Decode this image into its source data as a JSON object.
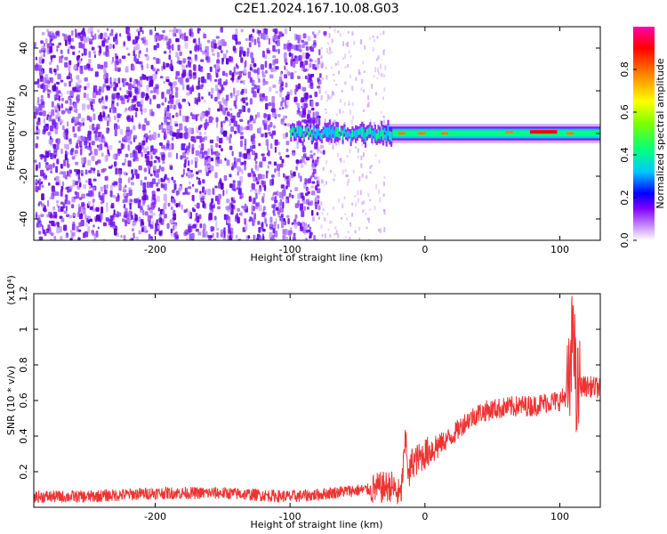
{
  "title": "C2E1.2024.167.10.08.G03",
  "chart_data": [
    {
      "type": "heatmap",
      "xlabel": "Height of straight line (km)",
      "ylabel": "Frequency (Hz)",
      "xlim": [
        -290,
        130
      ],
      "ylim": [
        -50,
        50
      ],
      "xticks": [
        -200,
        -100,
        0,
        100
      ],
      "yticks": [
        -40,
        -20,
        0,
        20,
        40
      ],
      "colorbar": {
        "label": "Normalized spectral amplitude",
        "range": [
          0.0,
          1.0
        ],
        "ticks": [
          0.0,
          0.2,
          0.4,
          0.6,
          0.8
        ],
        "colormap": [
          "#ffffff",
          "#cc99ff",
          "#8000ff",
          "#0000ff",
          "#00c8ff",
          "#00ff80",
          "#80ff00",
          "#ffff00",
          "#ff8000",
          "#ff0000",
          "#ff00aa"
        ]
      },
      "regions": [
        {
          "x_range": [
            -290,
            -80
          ],
          "description": "broadband noise",
          "amplitude": 0.06
        },
        {
          "x_range": [
            -80,
            -30
          ],
          "description": "fading noise",
          "amplitude": 0.03
        },
        {
          "x_range": [
            -100,
            130
          ],
          "description": "signal band centered at 0 Hz",
          "center_freq": 0,
          "halfwidth_hz": 3,
          "peak_amplitude": 0.95
        }
      ]
    },
    {
      "type": "line",
      "xlabel": "Height of straight line (km)",
      "ylabel": "SNR (10 * v/v)",
      "y_multiplier": "(x10⁴)",
      "xlim": [
        -290,
        130
      ],
      "ylim": [
        0,
        1.2
      ],
      "xticks": [
        -200,
        -100,
        0,
        100
      ],
      "yticks": [
        0.2,
        0.4,
        0.6,
        0.8,
        1.0,
        1.2
      ],
      "color": "#ee3333",
      "series": [
        {
          "x": [
            -290,
            -250,
            -200,
            -150,
            -100,
            -80,
            -60,
            -40,
            -25,
            -18,
            -14,
            -12,
            -10,
            -5,
            0,
            10,
            20,
            30,
            40,
            50,
            60,
            70,
            80,
            90,
            100,
            105,
            108,
            110,
            112,
            115,
            120,
            130
          ],
          "y": [
            0.06,
            0.06,
            0.08,
            0.08,
            0.06,
            0.07,
            0.09,
            0.1,
            0.12,
            0.06,
            0.4,
            0.15,
            0.25,
            0.27,
            0.3,
            0.35,
            0.4,
            0.48,
            0.53,
            0.55,
            0.56,
            0.57,
            0.57,
            0.59,
            0.6,
            0.63,
            0.7,
            1.15,
            0.6,
            0.68,
            0.68,
            0.67
          ]
        }
      ]
    }
  ]
}
